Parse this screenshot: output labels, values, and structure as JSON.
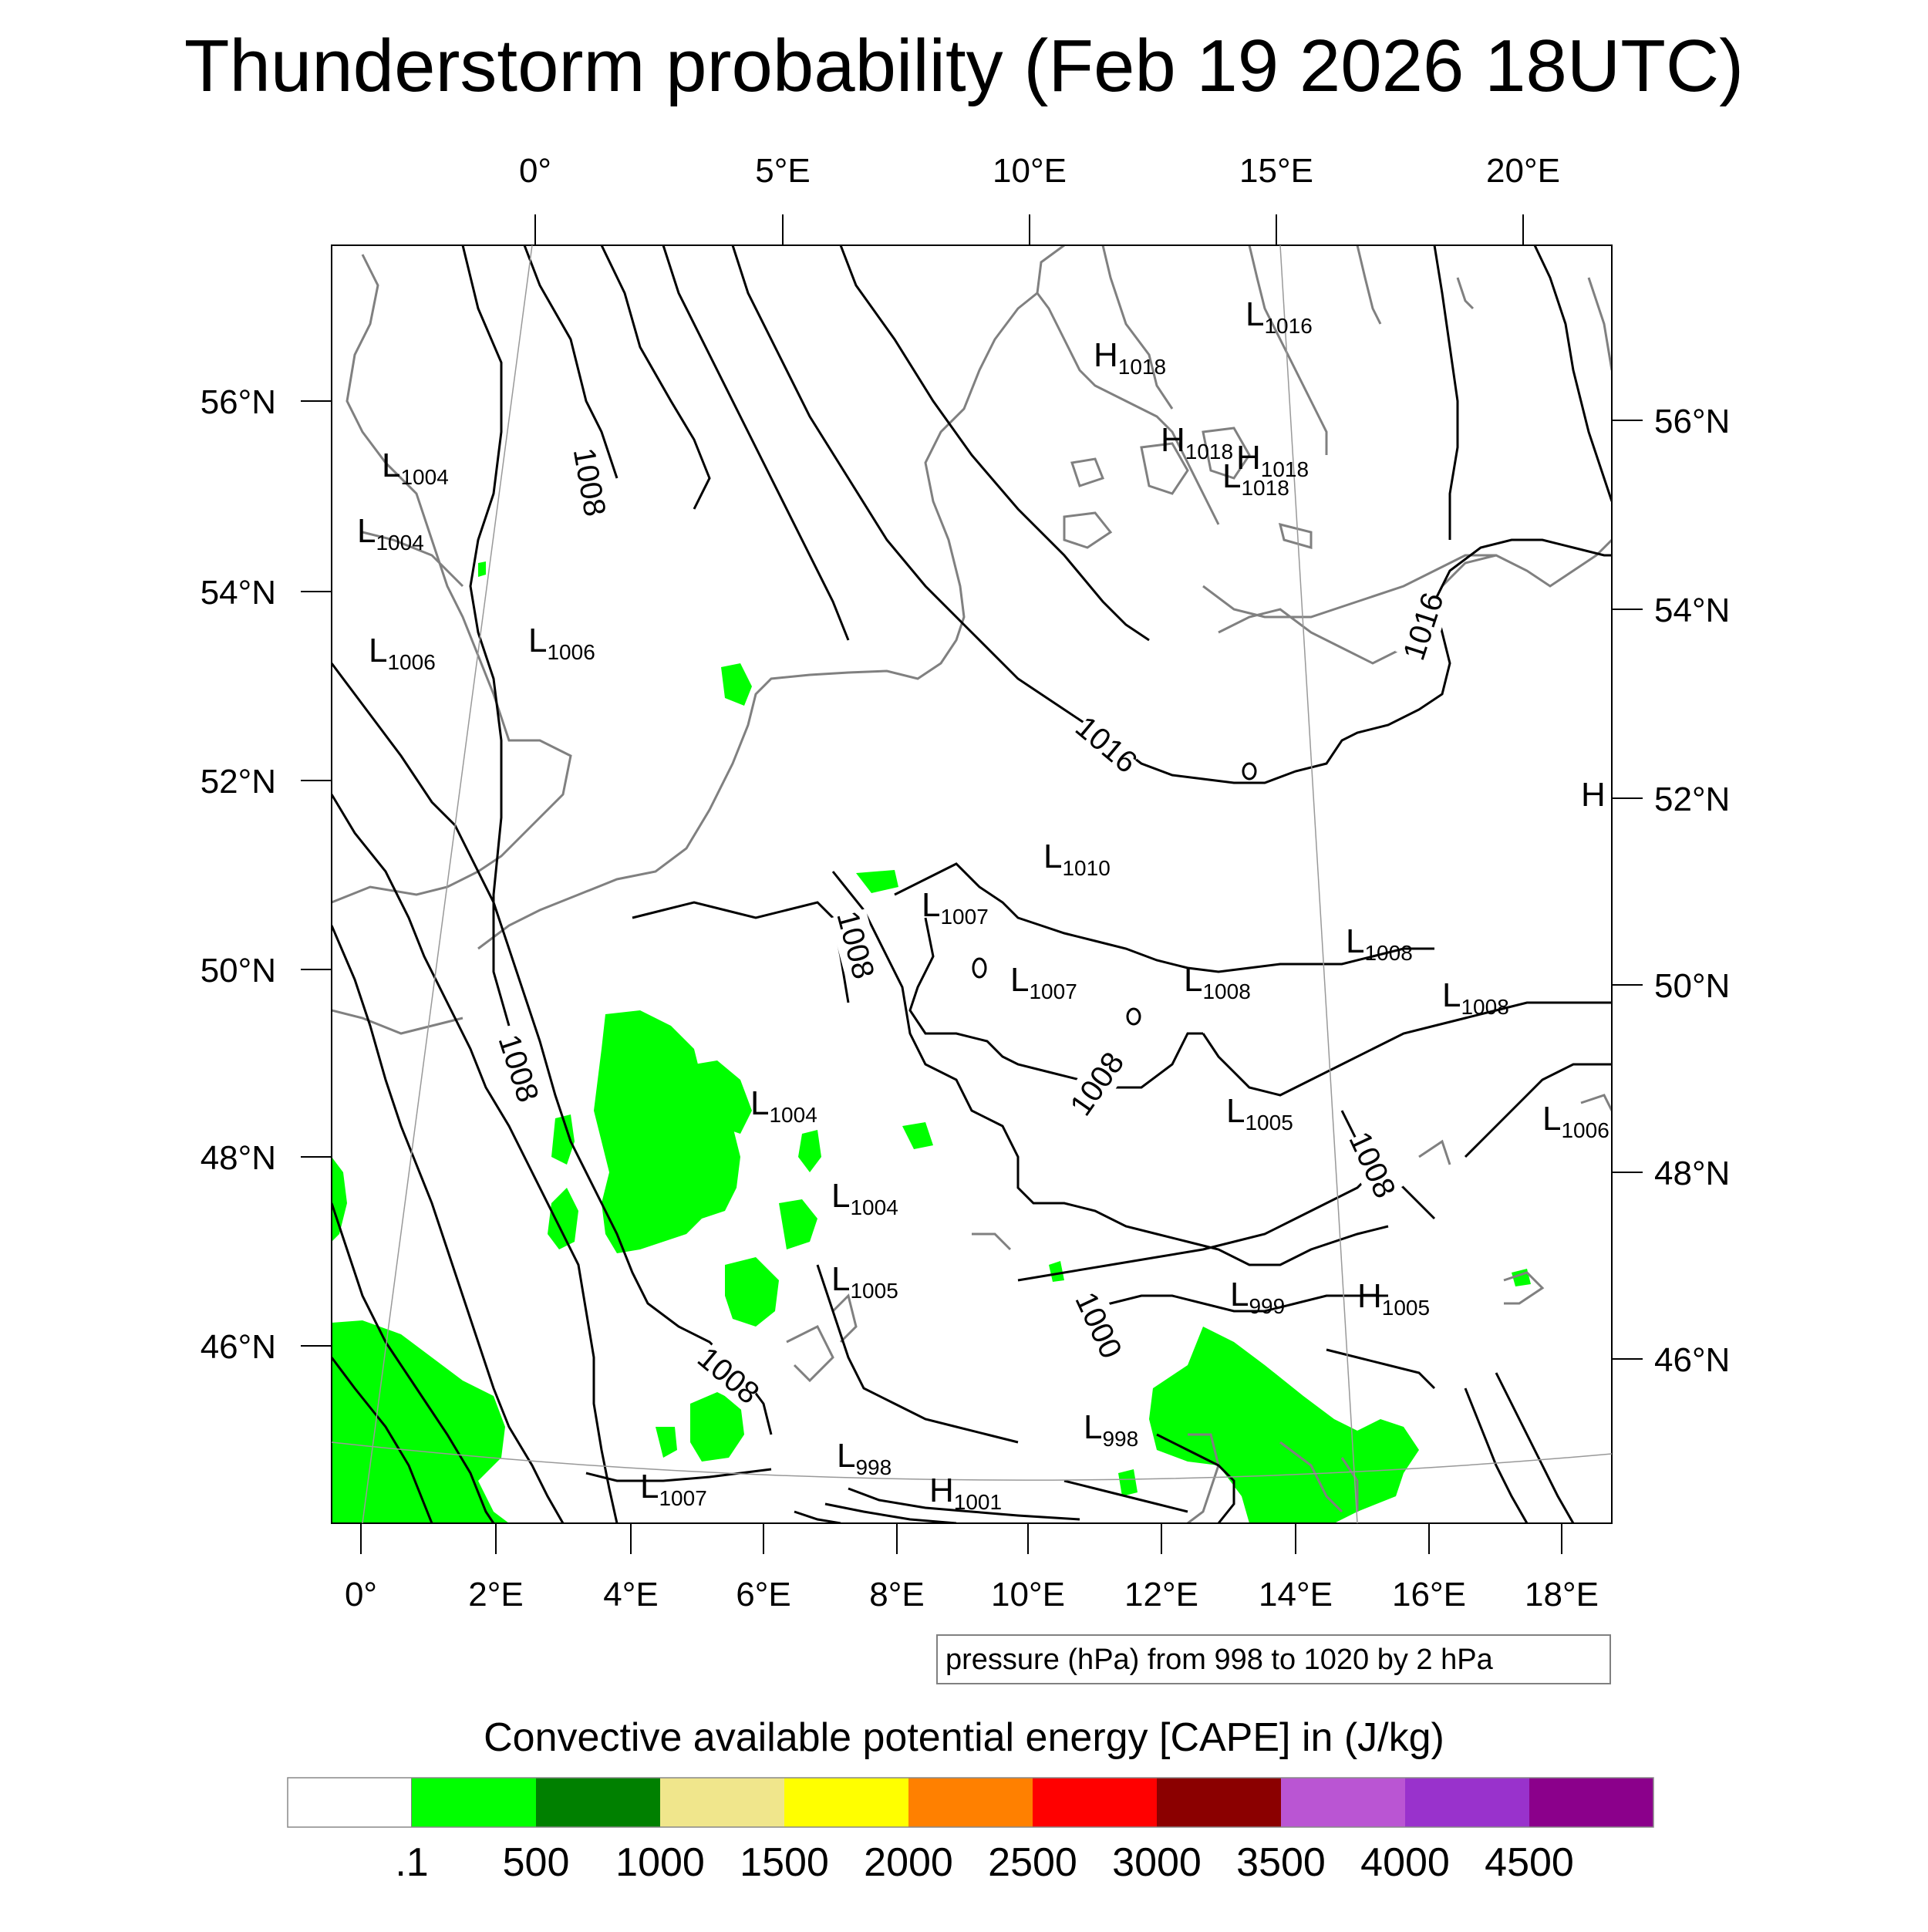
{
  "title": "Thunderstorm probability (Feb 19 2026 18UTC)",
  "top_lon_labels": [
    "0°",
    "5°E",
    "10°E",
    "15°E",
    "20°E"
  ],
  "bottom_lon_labels": [
    "0°",
    "2°E",
    "4°E",
    "6°E",
    "8°E",
    "10°E",
    "12°E",
    "14°E",
    "16°E",
    "18°E"
  ],
  "left_lat_labels": [
    "56°N",
    "54°N",
    "52°N",
    "50°N",
    "48°N",
    "46°N"
  ],
  "right_lat_labels": [
    "56°N",
    "54°N",
    "52°N",
    "50°N",
    "48°N",
    "46°N"
  ],
  "contour_labels": [
    "1008",
    "1008",
    "1008",
    "1008",
    "1008",
    "1008",
    "1016",
    "1016",
    "1000"
  ],
  "pressure_centers": [
    {
      "type": "L",
      "value": "1016"
    },
    {
      "type": "H",
      "value": "1018"
    },
    {
      "type": "H",
      "value": "1018"
    },
    {
      "type": "H",
      "value": "1018"
    },
    {
      "type": "L",
      "value": "1018"
    },
    {
      "type": "L",
      "value": "1004"
    },
    {
      "type": "L",
      "value": "1004"
    },
    {
      "type": "L",
      "value": "1006"
    },
    {
      "type": "L",
      "value": "1006"
    },
    {
      "type": "L",
      "value": "1010"
    },
    {
      "type": "L",
      "value": "1007"
    },
    {
      "type": "L",
      "value": "1007"
    },
    {
      "type": "L",
      "value": "1008"
    },
    {
      "type": "L",
      "value": "1008"
    },
    {
      "type": "L",
      "value": "1008"
    },
    {
      "type": "L",
      "value": "1004"
    },
    {
      "type": "L",
      "value": "1004"
    },
    {
      "type": "L",
      "value": "1005"
    },
    {
      "type": "L",
      "value": "1005"
    },
    {
      "type": "L",
      "value": "1006"
    },
    {
      "type": "L",
      "value": "999"
    },
    {
      "type": "H",
      "value": "1005"
    },
    {
      "type": "L",
      "value": "998"
    },
    {
      "type": "L",
      "value": "998"
    },
    {
      "type": "L",
      "value": "1007"
    },
    {
      "type": "H",
      "value": "1001"
    },
    {
      "type": "H",
      "value": ""
    }
  ],
  "pressure_note": "pressure (hPa) from 998 to 1020 by 2 hPa",
  "colorbar": {
    "title": "Convective available potential energy [CAPE] in (J/kg)",
    "colors": [
      "#ffffff",
      "#00ff00",
      "#008000",
      "#f0e68c",
      "#ffff00",
      "#ff8000",
      "#ff0000",
      "#8b0000",
      "#ba55d3",
      "#9932cc",
      "#8b008b"
    ],
    "labels": [
      ".1",
      "500",
      "1000",
      "1500",
      "2000",
      "2500",
      "3000",
      "3500",
      "4000",
      "4500"
    ]
  },
  "colors": {
    "coastline": "#808080",
    "isobar": "#000000",
    "cape_low": "#00ff00"
  }
}
